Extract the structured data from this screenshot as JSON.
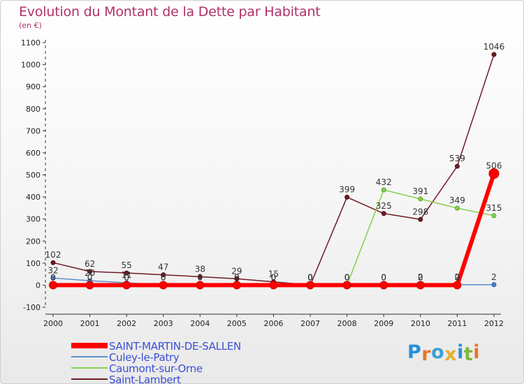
{
  "chart_data": {
    "type": "line",
    "title": "Evolution du Montant de la Dette par Habitant",
    "unit_label": "(en €)",
    "x": [
      "2000",
      "2001",
      "2002",
      "2003",
      "2004",
      "2005",
      "2006",
      "2007",
      "2008",
      "2009",
      "2010",
      "2011",
      "2012"
    ],
    "ylim": [
      -100,
      1100
    ],
    "yticks": [
      -100,
      0,
      100,
      200,
      300,
      400,
      500,
      600,
      700,
      800,
      900,
      1000,
      1100
    ],
    "grid": false,
    "legend_position": "bottom-left",
    "series": [
      {
        "name": "SAINT-MARTIN-DE-SALLEN",
        "color": "#ff0000",
        "values": [
          0,
          0,
          0,
          0,
          0,
          0,
          0,
          0,
          0,
          0,
          0,
          0,
          506
        ],
        "labels": [
          "",
          "",
          "",
          "",
          "",
          "",
          "",
          "0",
          "0",
          "0",
          "0",
          "0",
          "506"
        ]
      },
      {
        "name": "Culey-le-Patry",
        "color": "#5b8fcc",
        "values": [
          32,
          20,
          11,
          0,
          0,
          0,
          0,
          0,
          0,
          0,
          2,
          2,
          2
        ],
        "labels": [
          "32",
          "20",
          "11",
          "0",
          "0",
          "0",
          "0",
          "0",
          "0",
          "0",
          "2",
          "2",
          "2"
        ]
      },
      {
        "name": "Caumont-sur-Orne",
        "color": "#84d04a",
        "values": [
          0,
          0,
          0,
          0,
          0,
          0,
          0,
          0,
          0,
          432,
          391,
          349,
          315
        ],
        "labels": [
          "0",
          "0",
          "0",
          "0",
          "0",
          "0",
          "0",
          "0",
          "0",
          "432",
          "391",
          "349",
          "315"
        ]
      },
      {
        "name": "Saint-Lambert",
        "color": "#6e1c24",
        "values": [
          102,
          62,
          55,
          47,
          38,
          29,
          15,
          0,
          399,
          325,
          298,
          539,
          1046
        ],
        "labels": [
          "102",
          "62",
          "55",
          "47",
          "38",
          "29",
          "15",
          "0",
          "399",
          "325",
          "298",
          "539",
          "1046"
        ]
      }
    ]
  },
  "logo": {
    "text": "Proxiti",
    "colors": [
      "#2a8fd8",
      "#e8752a",
      "#3aa0d8",
      "#e8b02a",
      "#2a8fd8",
      "#7cb83a",
      "#e8752a"
    ]
  }
}
